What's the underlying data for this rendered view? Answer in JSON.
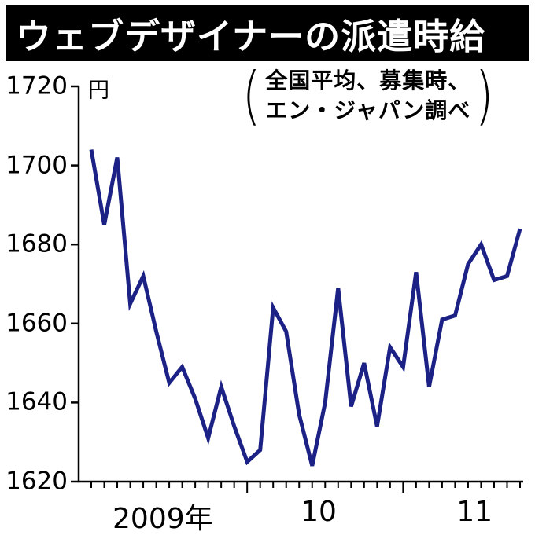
{
  "header": {
    "title": "ウェブデザイナーの派遣時給"
  },
  "chart_data": {
    "type": "line",
    "title": "ウェブデザイナーの派遣時給",
    "unit_label": "円",
    "note_line1": "全国平均、募集時、",
    "note_line2": "エン・ジャパン調べ",
    "note_source": "エン・ジャパン",
    "ylim": [
      1620,
      1720
    ],
    "y_ticks": [
      1720,
      1700,
      1680,
      1660,
      1640,
      1620
    ],
    "x_tick_labels": [
      "2009年",
      "10",
      "11"
    ],
    "x_label_month_indices": [
      5.5,
      17.5,
      29.5
    ],
    "year_boundary_indices": [
      12,
      24
    ],
    "months": [
      "2009-01",
      "2009-02",
      "2009-03",
      "2009-04",
      "2009-05",
      "2009-06",
      "2009-07",
      "2009-08",
      "2009-09",
      "2009-10",
      "2009-11",
      "2009-12",
      "2010-01",
      "2010-02",
      "2010-03",
      "2010-04",
      "2010-05",
      "2010-06",
      "2010-07",
      "2010-08",
      "2010-09",
      "2010-10",
      "2010-11",
      "2010-12",
      "2011-01",
      "2011-02",
      "2011-03",
      "2011-04",
      "2011-05",
      "2011-06",
      "2011-07",
      "2011-08",
      "2011-09",
      "2011-10"
    ],
    "values": [
      1704,
      1685,
      1702,
      1665,
      1672,
      1658,
      1645,
      1649,
      1641,
      1631,
      1644,
      1634,
      1625,
      1628,
      1664,
      1658,
      1637,
      1624,
      1640,
      1669,
      1639,
      1650,
      1634,
      1654,
      1649,
      1673,
      1644,
      1661,
      1662,
      1675,
      1680,
      1671,
      1672,
      1684
    ],
    "line_color": "#1b2185",
    "axis_color": "#000000",
    "grid": false,
    "legend": false
  }
}
